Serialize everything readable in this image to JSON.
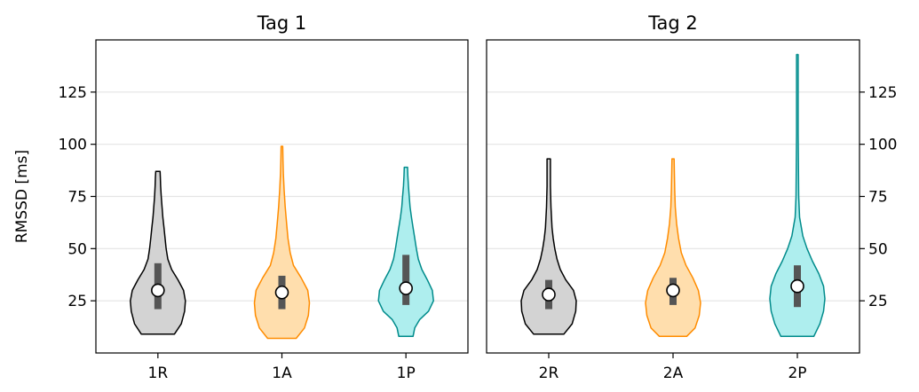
{
  "chart_data": [
    {
      "type": "violin",
      "title": "Tag 1",
      "ylabel": "RMSSD [ms]",
      "xlabel": "",
      "ylim": [
        0,
        150
      ],
      "yticks": [
        25,
        50,
        75,
        100,
        125
      ],
      "ytick_side": "left",
      "grid": "horizontal",
      "categories": [
        "1R",
        "1A",
        "1P"
      ],
      "series": [
        {
          "category": "1R",
          "color": "#d3d3d3",
          "edge_color": "#000000",
          "min": 9,
          "max": 87,
          "q1": 21,
          "median": 30,
          "q3": 43,
          "density_y": [
            9,
            14,
            20,
            25,
            30,
            35,
            40,
            45,
            50,
            55,
            60,
            65,
            70,
            75,
            80,
            84,
            87
          ],
          "density_w": [
            0.6,
            0.85,
            0.97,
            1.0,
            0.93,
            0.73,
            0.5,
            0.36,
            0.3,
            0.26,
            0.22,
            0.18,
            0.15,
            0.12,
            0.1,
            0.09,
            0.08
          ]
        },
        {
          "category": "1A",
          "color": "#ffdead",
          "edge_color": "#ff8c00",
          "min": 7,
          "max": 99,
          "q1": 21,
          "median": 29,
          "q3": 37,
          "density_y": [
            7,
            12,
            18,
            24,
            30,
            36,
            42,
            48,
            55,
            62,
            70,
            78,
            86,
            92,
            99
          ],
          "density_w": [
            0.52,
            0.82,
            0.96,
            1.0,
            0.94,
            0.7,
            0.42,
            0.3,
            0.22,
            0.17,
            0.12,
            0.08,
            0.05,
            0.04,
            0.03
          ]
        },
        {
          "category": "1P",
          "color": "#aeeeee",
          "edge_color": "#008b8b",
          "min": 8,
          "max": 89,
          "q1": 23,
          "median": 31,
          "q3": 47,
          "density_y": [
            8,
            12,
            16,
            20,
            25,
            30,
            35,
            40,
            45,
            50,
            55,
            60,
            65,
            70,
            75,
            80,
            85,
            89
          ],
          "density_w": [
            0.26,
            0.32,
            0.5,
            0.82,
            1.0,
            0.96,
            0.78,
            0.58,
            0.45,
            0.38,
            0.32,
            0.26,
            0.2,
            0.15,
            0.12,
            0.09,
            0.07,
            0.06
          ]
        }
      ]
    },
    {
      "type": "violin",
      "title": "Tag 2",
      "ylabel": "",
      "xlabel": "",
      "ylim": [
        0,
        150
      ],
      "yticks": [
        25,
        50,
        75,
        100,
        125
      ],
      "ytick_side": "right",
      "grid": "horizontal",
      "categories": [
        "2R",
        "2A",
        "2P"
      ],
      "series": [
        {
          "category": "2R",
          "color": "#d3d3d3",
          "edge_color": "#000000",
          "min": 9,
          "max": 93,
          "q1": 21,
          "median": 28,
          "q3": 35,
          "density_y": [
            9,
            14,
            20,
            25,
            30,
            35,
            40,
            45,
            50,
            55,
            60,
            65,
            70,
            75,
            80,
            86,
            93
          ],
          "density_w": [
            0.55,
            0.85,
            0.98,
            1.0,
            0.9,
            0.62,
            0.42,
            0.3,
            0.22,
            0.16,
            0.12,
            0.1,
            0.08,
            0.07,
            0.06,
            0.06,
            0.06
          ]
        },
        {
          "category": "2A",
          "color": "#ffdead",
          "edge_color": "#ff8c00",
          "min": 8,
          "max": 93,
          "q1": 23,
          "median": 30,
          "q3": 36,
          "density_y": [
            8,
            12,
            18,
            24,
            30,
            36,
            42,
            48,
            55,
            62,
            70,
            78,
            86,
            93
          ],
          "density_w": [
            0.5,
            0.8,
            0.95,
            1.0,
            0.92,
            0.72,
            0.47,
            0.3,
            0.2,
            0.13,
            0.08,
            0.06,
            0.05,
            0.04
          ]
        },
        {
          "category": "2P",
          "color": "#aeeeee",
          "edge_color": "#008b8b",
          "min": 8,
          "max": 143,
          "q1": 22,
          "median": 32,
          "q3": 42,
          "density_y": [
            8,
            14,
            20,
            26,
            32,
            38,
            44,
            50,
            56,
            65,
            75,
            90,
            105,
            120,
            132,
            143
          ],
          "density_w": [
            0.6,
            0.82,
            0.95,
            1.0,
            0.95,
            0.78,
            0.55,
            0.35,
            0.2,
            0.08,
            0.05,
            0.04,
            0.03,
            0.03,
            0.03,
            0.03
          ]
        }
      ]
    }
  ]
}
